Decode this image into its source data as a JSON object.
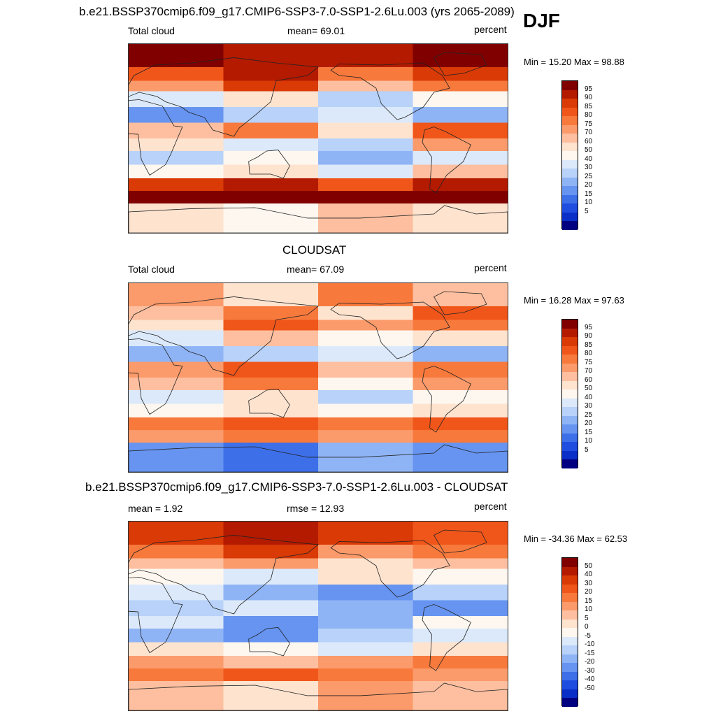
{
  "season": "DJF",
  "panels": [
    {
      "title": "b.e21.BSSP370cmip6.f09_g17.CMIP6-SSP3-7.0-SSP1-2.6Lu.003 (yrs 2065-2089)",
      "left_label": "Total cloud",
      "center_label": "mean=  69.01",
      "right_label": "percent",
      "minmax": "Min =  15.20 Max =  98.88",
      "scale": "abs"
    },
    {
      "title": "CLOUDSAT",
      "left_label": "Total cloud",
      "center_label": "mean=  67.09",
      "right_label": "percent",
      "minmax": "Min =  16.28 Max =  97.63",
      "scale": "abs"
    },
    {
      "title": "b.e21.BSSP370cmip6.f09_g17.CMIP6-SSP3-7.0-SSP1-2.6Lu.003 - CLOUDSAT",
      "left_label": "mean =   1.92",
      "center_label": "rmse =  12.93",
      "right_label": "percent",
      "minmax": "Min = -34.36 Max =  62.53",
      "scale": "diff"
    }
  ],
  "colorbars": {
    "abs": {
      "labels": [
        "95",
        "90",
        "85",
        "80",
        "75",
        "70",
        "60",
        "50",
        "40",
        "30",
        "25",
        "20",
        "15",
        "10",
        "5"
      ],
      "colors": [
        "#800000",
        "#b31a00",
        "#d93a06",
        "#f0561a",
        "#f7793c",
        "#fb9a6a",
        "#fdbf9f",
        "#fee3cf",
        "#fdf7ef",
        "#dce9fa",
        "#b8d2f9",
        "#8fb4f5",
        "#6694f0",
        "#3d6fe8",
        "#1f4de0",
        "#0a2fc8",
        "#000080"
      ]
    },
    "diff": {
      "labels": [
        "50",
        "40",
        "30",
        "20",
        "15",
        "10",
        "5",
        "0",
        "-5",
        "-10",
        "-15",
        "-20",
        "-30",
        "-40",
        "-50"
      ],
      "colors": [
        "#800000",
        "#b31a00",
        "#d93a06",
        "#f0561a",
        "#f7793c",
        "#fb9a6a",
        "#fdbf9f",
        "#fee3cf",
        "#fdf7ef",
        "#dce9fa",
        "#b8d2f9",
        "#8fb4f5",
        "#6694f0",
        "#3d6fe8",
        "#1f4de0",
        "#0a2fc8",
        "#000080"
      ]
    }
  },
  "fields": {
    "model": [
      {
        "lat": [
          90,
          68
        ],
        "levels": [
          16,
          15,
          15,
          16
        ]
      },
      {
        "lat": [
          68,
          55
        ],
        "levels": [
          13,
          15,
          12,
          14
        ]
      },
      {
        "lat": [
          55,
          45
        ],
        "levels": [
          11,
          14,
          10,
          12
        ]
      },
      {
        "lat": [
          45,
          30
        ],
        "levels": [
          7,
          9,
          6,
          8
        ]
      },
      {
        "lat": [
          30,
          15
        ],
        "levels": [
          4,
          6,
          7,
          5
        ]
      },
      {
        "lat": [
          15,
          0
        ],
        "levels": [
          10,
          12,
          9,
          13
        ]
      },
      {
        "lat": [
          0,
          -12
        ],
        "levels": [
          9,
          7,
          6,
          11
        ]
      },
      {
        "lat": [
          -12,
          -25
        ],
        "levels": [
          6,
          8,
          5,
          7
        ]
      },
      {
        "lat": [
          -25,
          -38
        ],
        "levels": [
          8,
          9,
          7,
          10
        ]
      },
      {
        "lat": [
          -38,
          -50
        ],
        "levels": [
          14,
          15,
          13,
          15
        ]
      },
      {
        "lat": [
          -50,
          -62
        ],
        "levels": [
          16,
          16,
          16,
          16
        ]
      },
      {
        "lat": [
          -62,
          -90
        ],
        "levels": [
          9,
          8,
          10,
          9
        ]
      }
    ],
    "obs": [
      {
        "lat": [
          90,
          68
        ],
        "levels": [
          11,
          9,
          12,
          10
        ]
      },
      {
        "lat": [
          68,
          55
        ],
        "levels": [
          10,
          12,
          9,
          13
        ]
      },
      {
        "lat": [
          55,
          45
        ],
        "levels": [
          9,
          13,
          11,
          12
        ]
      },
      {
        "lat": [
          45,
          30
        ],
        "levels": [
          7,
          10,
          8,
          9
        ]
      },
      {
        "lat": [
          30,
          15
        ],
        "levels": [
          5,
          6,
          7,
          5
        ]
      },
      {
        "lat": [
          15,
          0
        ],
        "levels": [
          11,
          13,
          10,
          12
        ]
      },
      {
        "lat": [
          0,
          -12
        ],
        "levels": [
          10,
          12,
          8,
          11
        ]
      },
      {
        "lat": [
          -12,
          -25
        ],
        "levels": [
          7,
          9,
          6,
          8
        ]
      },
      {
        "lat": [
          -25,
          -38
        ],
        "levels": [
          8,
          9,
          8,
          9
        ]
      },
      {
        "lat": [
          -38,
          -50
        ],
        "levels": [
          12,
          13,
          12,
          13
        ]
      },
      {
        "lat": [
          -50,
          -62
        ],
        "levels": [
          11,
          12,
          11,
          12
        ]
      },
      {
        "lat": [
          -62,
          -90
        ],
        "levels": [
          4,
          3,
          5,
          4
        ]
      }
    ],
    "diff": [
      {
        "lat": [
          90,
          68
        ],
        "levels": [
          14,
          15,
          14,
          13
        ]
      },
      {
        "lat": [
          68,
          55
        ],
        "levels": [
          12,
          14,
          11,
          12
        ]
      },
      {
        "lat": [
          55,
          45
        ],
        "levels": [
          10,
          11,
          9,
          10
        ]
      },
      {
        "lat": [
          45,
          30
        ],
        "levels": [
          8,
          7,
          9,
          8
        ]
      },
      {
        "lat": [
          30,
          15
        ],
        "levels": [
          7,
          5,
          4,
          6
        ]
      },
      {
        "lat": [
          15,
          0
        ],
        "levels": [
          6,
          7,
          5,
          4
        ]
      },
      {
        "lat": [
          0,
          -12
        ],
        "levels": [
          7,
          4,
          5,
          8
        ]
      },
      {
        "lat": [
          -12,
          -25
        ],
        "levels": [
          5,
          4,
          6,
          7
        ]
      },
      {
        "lat": [
          -25,
          -38
        ],
        "levels": [
          9,
          8,
          7,
          9
        ]
      },
      {
        "lat": [
          -38,
          -50
        ],
        "levels": [
          11,
          10,
          11,
          12
        ]
      },
      {
        "lat": [
          -50,
          -62
        ],
        "levels": [
          12,
          13,
          12,
          11
        ]
      },
      {
        "lat": [
          -62,
          -90
        ],
        "levels": [
          10,
          9,
          11,
          10
        ]
      }
    ]
  }
}
